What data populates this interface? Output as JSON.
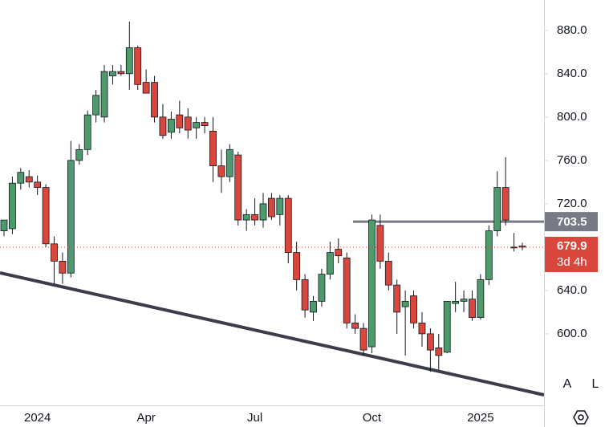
{
  "chart_data": {
    "type": "candlestick",
    "categories": [
      null,
      null,
      null,
      null,
      "2024",
      null,
      null,
      null,
      null,
      null,
      null,
      null,
      null,
      null,
      null,
      null,
      null,
      "Apr",
      null,
      null,
      null,
      null,
      null,
      null,
      null,
      null,
      null,
      null,
      null,
      null,
      "Jul",
      null,
      null,
      null,
      null,
      null,
      null,
      null,
      null,
      null,
      null,
      null,
      null,
      null,
      "Oct",
      null,
      null,
      null,
      null,
      null,
      null,
      null,
      null,
      null,
      null,
      null,
      null,
      "2025",
      null,
      null,
      null,
      null,
      null
    ],
    "open": [
      695,
      697,
      739,
      745,
      740,
      735,
      683,
      667,
      656,
      760,
      770,
      802,
      800,
      838,
      842,
      840,
      864,
      832,
      832,
      800,
      786,
      802,
      800,
      790,
      795,
      787,
      755,
      745,
      765,
      705,
      710,
      705,
      725,
      710,
      725,
      675,
      650,
      620,
      630,
      655,
      678,
      670,
      610,
      605,
      588,
      700,
      667,
      645,
      625,
      635,
      610,
      600,
      587,
      583,
      628,
      630,
      632,
      615,
      650,
      695,
      735,
      680,
      681
    ],
    "high": [
      705,
      745,
      753,
      751,
      746,
      738,
      690,
      675,
      778,
      775,
      806,
      825,
      848,
      848,
      848,
      888,
      866,
      844,
      838,
      812,
      805,
      815,
      808,
      800,
      800,
      800,
      770,
      775,
      768,
      715,
      725,
      730,
      730,
      728,
      728,
      685,
      655,
      635,
      660,
      685,
      688,
      675,
      618,
      610,
      710,
      710,
      675,
      650,
      640,
      640,
      620,
      605,
      600,
      630,
      648,
      640,
      640,
      655,
      700,
      750,
      763,
      693,
      684
    ],
    "low": [
      690,
      692,
      733,
      735,
      728,
      680,
      645,
      646,
      652,
      756,
      765,
      795,
      795,
      830,
      838,
      825,
      825,
      822,
      795,
      780,
      780,
      785,
      780,
      780,
      785,
      740,
      730,
      740,
      700,
      695,
      700,
      698,
      705,
      700,
      665,
      640,
      615,
      612,
      625,
      650,
      665,
      605,
      600,
      580,
      582,
      660,
      640,
      600,
      580,
      605,
      588,
      565,
      567,
      582,
      620,
      620,
      612,
      613,
      645,
      690,
      700,
      676,
      677
    ],
    "close": [
      705,
      739,
      749,
      740,
      735,
      683,
      667,
      656,
      760,
      770,
      802,
      820,
      842,
      842,
      840,
      864,
      830,
      822,
      800,
      783,
      798,
      790,
      788,
      795,
      792,
      755,
      745,
      770,
      705,
      710,
      705,
      720,
      708,
      725,
      675,
      650,
      622,
      630,
      655,
      675,
      672,
      610,
      605,
      585,
      705,
      667,
      645,
      620,
      630,
      610,
      600,
      585,
      580,
      630,
      630,
      632,
      615,
      650,
      695,
      735,
      705,
      680,
      679.9
    ],
    "up_color": "#4e9a6c",
    "down_color": "#d9463c",
    "ylim": [
      534,
      908
    ],
    "yticks": [
      {
        "value": 600,
        "label": "600.0"
      },
      {
        "value": 640,
        "label": "640.0"
      },
      {
        "value": 680,
        "label": "680.0"
      },
      {
        "value": 720,
        "label": "720.0"
      },
      {
        "value": 760,
        "label": "760.0"
      },
      {
        "value": 800,
        "label": "800.0"
      },
      {
        "value": 840,
        "label": "840.0"
      },
      {
        "value": 880,
        "label": "880.0"
      }
    ],
    "hline": 703.5,
    "countdown": "3d 4h",
    "buttons": [
      "A",
      "L"
    ]
  }
}
